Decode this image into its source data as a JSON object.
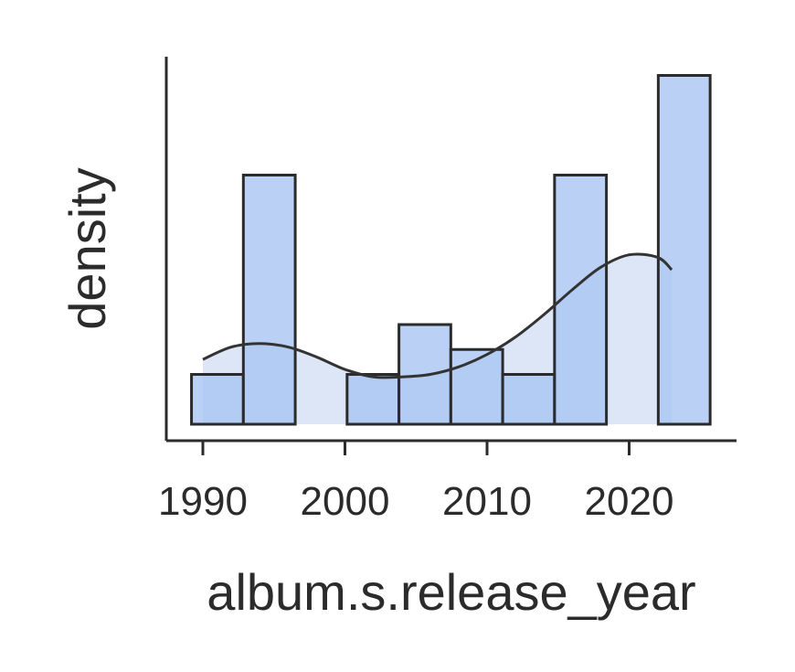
{
  "chart_data": {
    "type": "bar",
    "subtype": "histogram-with-kde",
    "title": "",
    "xlabel": "album.s.release_year",
    "ylabel": "density",
    "xlim": [
      1987.5,
      2027.5
    ],
    "ylim": [
      0,
      7.5
    ],
    "xticks": [
      "1990",
      "2000",
      "2010",
      "2020"
    ],
    "xtick_values": [
      1990,
      2000,
      2010,
      2020
    ],
    "y_ticks_shown": false,
    "grid": false,
    "bin_edges": [
      1989.2,
      1992.85,
      1996.5,
      2000.15,
      2003.8,
      2007.45,
      2011.1,
      2014.75,
      2018.4,
      2022.05,
      2025.7
    ],
    "bar_heights": [
      1,
      5,
      0,
      1,
      2,
      1.5,
      1,
      5,
      0,
      7
    ],
    "bar_color": "#a6c4f2",
    "kde": {
      "x": [
        1990,
        1992,
        1994,
        1996,
        1998,
        2000,
        2002,
        2004,
        2006,
        2008,
        2010,
        2012,
        2014,
        2016,
        2018,
        2020,
        2022,
        2023
      ],
      "y": [
        1.3,
        1.55,
        1.62,
        1.55,
        1.35,
        1.1,
        0.95,
        0.95,
        1.0,
        1.15,
        1.4,
        1.75,
        2.2,
        2.7,
        3.15,
        3.4,
        3.35,
        3.1
      ],
      "fill_color": "#dde6f7",
      "line_color": "#333333"
    }
  }
}
